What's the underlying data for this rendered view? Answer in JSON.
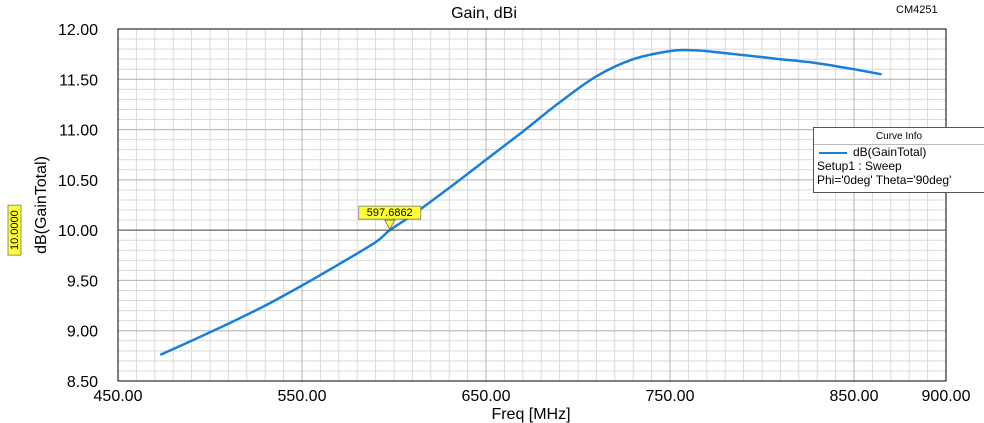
{
  "chart_data": {
    "type": "line",
    "title": "Gain, dBi",
    "xlabel": "Freq [MHz]",
    "ylabel": "dB(GainTotal)",
    "xlim": [
      450,
      900
    ],
    "ylim": [
      8.5,
      12.0
    ],
    "xticks": [
      450,
      550,
      650,
      750,
      850,
      900
    ],
    "xtick_labels": [
      "450.00",
      "550.00",
      "650.00",
      "750.00",
      "850.00",
      "900.00"
    ],
    "yticks": [
      8.5,
      9.0,
      9.5,
      10.0,
      10.5,
      11.0,
      11.5,
      12.0
    ],
    "ytick_labels": [
      "8.50",
      "9.00",
      "9.50",
      "10.00",
      "10.50",
      "11.00",
      "11.50",
      "12.00"
    ],
    "grid": true,
    "series": [
      {
        "name": "dB(GainTotal)",
        "color": "#1a7fd8",
        "x": [
          473,
          490,
          510,
          530,
          550,
          570,
          590,
          597.7,
          610,
          630,
          650,
          670,
          690,
          710,
          730,
          750,
          760,
          770,
          790,
          810,
          830,
          850,
          865
        ],
        "y": [
          8.76,
          8.9,
          9.07,
          9.25,
          9.45,
          9.66,
          9.88,
          10.0,
          10.15,
          10.42,
          10.7,
          10.98,
          11.27,
          11.53,
          11.7,
          11.78,
          11.79,
          11.78,
          11.74,
          11.7,
          11.66,
          11.6,
          11.55
        ]
      }
    ],
    "marker": {
      "label": "597.6862",
      "x": 597.6862,
      "y_value_label": "10.0000",
      "y": 10.0
    },
    "legend": {
      "title": "Curve Info",
      "placement": "right",
      "entries": [
        "dB(GainTotal)",
        "Setup1 : Sweep",
        "Phi='0deg' Theta='90deg'"
      ]
    },
    "badge": "CM4251"
  }
}
